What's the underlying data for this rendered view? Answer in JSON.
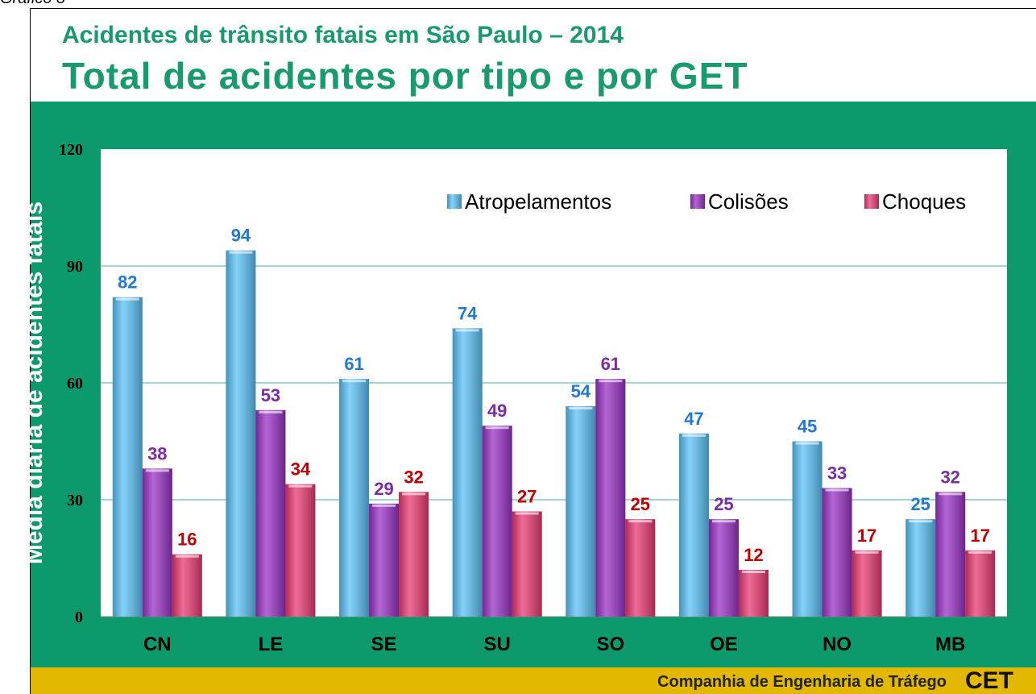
{
  "page": {
    "caption": "Gráfico 8",
    "footer": "Companhia de Engenharia de Tráfego",
    "logo": "CET"
  },
  "chart_data": {
    "type": "bar",
    "title": "Acidentes de trânsito fatais em São Paulo – 2014",
    "subtitle": "Total de acidentes por tipo e por GET",
    "y_label": "Média diária de acidentes fatais",
    "categories": [
      "CN",
      "LE",
      "SE",
      "SU",
      "SO",
      "OE",
      "NO",
      "MB"
    ],
    "series": [
      {
        "name": "Atropelamentos",
        "color": "#5bc2f7",
        "label_color": "#1f7ad6",
        "values": [
          82,
          94,
          61,
          74,
          54,
          47,
          45,
          25
        ]
      },
      {
        "name": "Colisões",
        "color": "#9a32c6",
        "label_color": "#7b2aa8",
        "values": [
          38,
          53,
          29,
          49,
          61,
          25,
          33,
          32
        ]
      },
      {
        "name": "Choques",
        "color": "#ea3a72",
        "label_color": "#c00000",
        "values": [
          16,
          34,
          32,
          27,
          25,
          12,
          17,
          17
        ]
      }
    ],
    "ylim": [
      0,
      120
    ],
    "yticks": [
      0,
      30,
      60,
      90,
      120
    ],
    "grid": true,
    "legend": "top-right"
  }
}
